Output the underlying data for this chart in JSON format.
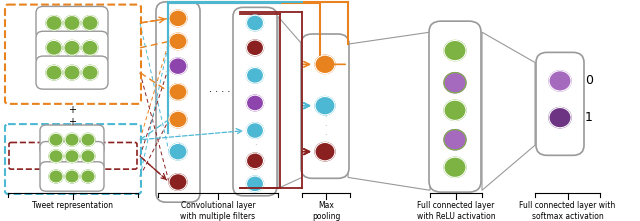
{
  "fig_width": 6.4,
  "fig_height": 2.21,
  "dpi": 100,
  "bg_color": "#ffffff",
  "green_color": "#7cb342",
  "orange_color": "#e8821e",
  "teal_color": "#4db8d4",
  "dark_red_color": "#8b2020",
  "purple_color": "#8e44ad",
  "light_purple_color": "#a569bd",
  "dark_purple_color": "#6c3483",
  "gray_color": "#999999",
  "labels": [
    "Tweet representation",
    "Convolutional layer\nwith multiple filters",
    "Max\npooling",
    "Full connected layer\nwith ReLU activation",
    "Full connected layer with\nsoftmax activation"
  ],
  "output_labels": [
    "0",
    "1"
  ]
}
